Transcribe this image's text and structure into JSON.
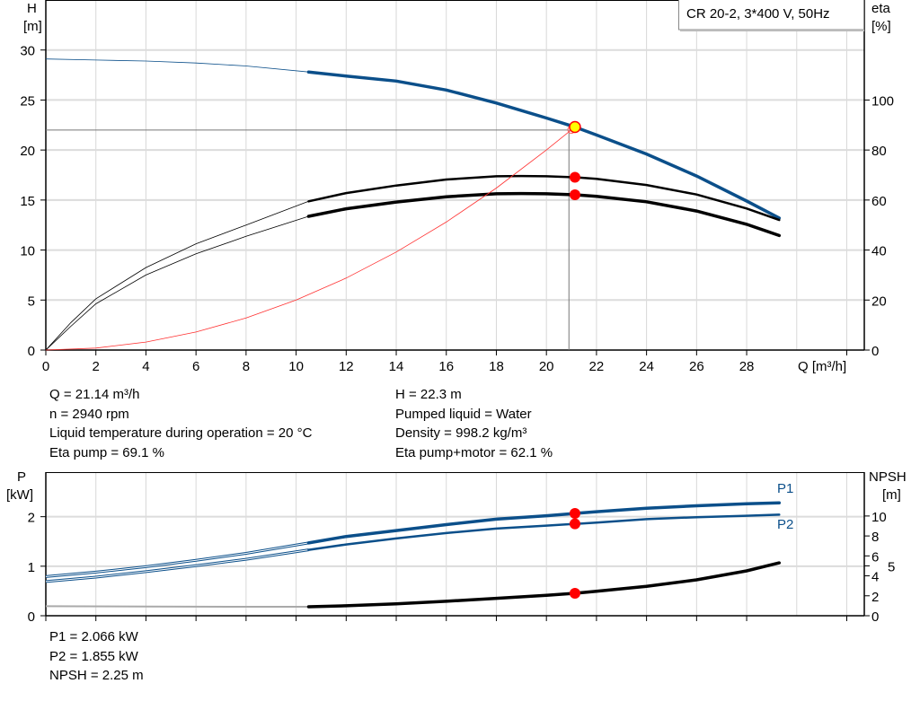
{
  "chart_data": [
    {
      "type": "line",
      "title": "CR 20-2, 3*400 V, 50Hz",
      "xlabel": "Q [m³/h]",
      "ylabel": [
        "H",
        "[m]"
      ],
      "y2label": [
        "eta",
        "[%]"
      ],
      "xlim": [
        0,
        32.7
      ],
      "ylim": [
        0,
        35
      ],
      "y2lim": [
        0,
        140
      ],
      "xticks": [
        0,
        2,
        4,
        6,
        8,
        10,
        12,
        14,
        16,
        18,
        20,
        22,
        24,
        26,
        28
      ],
      "yticks": [
        0,
        5,
        10,
        15,
        20,
        25,
        30
      ],
      "y2ticks": [
        0,
        20,
        40,
        60,
        80,
        100
      ],
      "grid": true,
      "legend": "top-right",
      "series": [
        {
          "key": "H",
          "axis": "left",
          "color": "#0b4f8a",
          "thick_from": 10.5,
          "x": [
            0,
            2,
            4,
            6,
            8,
            10.5,
            12,
            14,
            16,
            18,
            20,
            21.14,
            22,
            24,
            26,
            28,
            29.3
          ],
          "y": [
            29.1,
            29.0,
            28.9,
            28.7,
            28.4,
            27.8,
            27.4,
            26.9,
            26.0,
            24.7,
            23.2,
            22.3,
            21.5,
            19.6,
            17.4,
            14.9,
            13.2
          ]
        },
        {
          "key": "eta_pump",
          "axis": "right",
          "color": "#000000",
          "thick_from": 10.5,
          "x": [
            0,
            1,
            2,
            4,
            6,
            8,
            10.5,
            12,
            14,
            16,
            18,
            19,
            20,
            21.14,
            22,
            24,
            26,
            28,
            29.3
          ],
          "y": [
            0,
            11,
            20.5,
            33,
            42.5,
            50,
            59.5,
            62.8,
            65.8,
            68.2,
            69.5,
            69.6,
            69.5,
            69.1,
            68.5,
            66,
            62.2,
            56.6,
            52
          ]
        },
        {
          "key": "eta_pump_motor",
          "axis": "right",
          "color": "#000000",
          "thick_from": 10.5,
          "x": [
            0,
            1,
            2,
            4,
            6,
            8,
            10.5,
            12,
            14,
            16,
            18,
            19,
            20,
            21.14,
            22,
            24,
            26,
            28,
            29.3
          ],
          "y": [
            0,
            9.5,
            18.5,
            30,
            38.5,
            45.5,
            53.5,
            56.5,
            59.2,
            61.3,
            62.5,
            62.6,
            62.5,
            62.1,
            61.5,
            59.3,
            55.6,
            50.3,
            45.8
          ]
        },
        {
          "key": "system_curve",
          "axis": "left",
          "color": "#ff3030",
          "x": [
            0,
            2,
            4,
            6,
            8,
            10,
            12,
            14,
            16,
            18,
            20,
            21.14
          ],
          "y": [
            0,
            0.2,
            0.8,
            1.8,
            3.2,
            5.0,
            7.2,
            9.8,
            12.8,
            16.2,
            20.0,
            22.3
          ]
        }
      ],
      "duty_point": {
        "Q": 21.14,
        "H": 22.3,
        "eta_pump": 69.1,
        "eta_pump_motor": 62.1
      },
      "crosshair": {
        "Q": 20.9,
        "H": 22.0
      }
    },
    {
      "type": "line",
      "ylabel": [
        "P",
        "[kW]"
      ],
      "y2label": [
        "NPSH",
        "[m]"
      ],
      "xlim": [
        0,
        32.7
      ],
      "ylim": [
        0,
        2.9
      ],
      "y2lim": [
        0,
        14.4
      ],
      "xticks": [
        0,
        2,
        4,
        6,
        8,
        10,
        12,
        14,
        16,
        18,
        20,
        22,
        24,
        26,
        28
      ],
      "yticks": [
        0,
        1,
        2
      ],
      "y2ticks": [
        0,
        2,
        4,
        5,
        6,
        8,
        10
      ],
      "grid": true,
      "series": [
        {
          "key": "P1",
          "name": "P1",
          "axis": "left",
          "color": "#0b4f8a",
          "thick_from": 10.5,
          "x": [
            0,
            2,
            4,
            6,
            8,
            10.5,
            12,
            14,
            16,
            18,
            20,
            21.14,
            22,
            24,
            26,
            28,
            29.3
          ],
          "y": [
            0.79,
            0.88,
            0.99,
            1.12,
            1.26,
            1.47,
            1.6,
            1.72,
            1.84,
            1.95,
            2.02,
            2.066,
            2.1,
            2.17,
            2.22,
            2.26,
            2.28
          ]
        },
        {
          "key": "P2",
          "name": "P2",
          "axis": "left",
          "color": "#0b4f8a",
          "thick_from": 10.5,
          "x": [
            0,
            2,
            4,
            6,
            8,
            10.5,
            12,
            14,
            16,
            18,
            20,
            21.14,
            22,
            24,
            26,
            28,
            29.3
          ],
          "y": [
            0.69,
            0.78,
            0.89,
            1.01,
            1.14,
            1.33,
            1.44,
            1.56,
            1.67,
            1.76,
            1.82,
            1.855,
            1.88,
            1.95,
            1.99,
            2.02,
            2.04
          ]
        },
        {
          "key": "NPSH",
          "axis": "right",
          "color": "#000000",
          "thin_color": "#aaaaaa",
          "thick_from": 10.5,
          "x": [
            0,
            4,
            8,
            10.5,
            12,
            14,
            16,
            18,
            20,
            21.14,
            22,
            24,
            26,
            28,
            29.3
          ],
          "y": [
            0.95,
            0.92,
            0.9,
            0.9,
            1.0,
            1.2,
            1.45,
            1.75,
            2.05,
            2.25,
            2.45,
            2.95,
            3.6,
            4.5,
            5.3
          ]
        }
      ],
      "duty_point": {
        "Q": 21.14,
        "P1": 2.066,
        "P2": 1.855,
        "NPSH": 2.25
      }
    }
  ],
  "readouts_top": {
    "left": [
      "Q = 21.14 m³/h",
      "n = 2940 rpm",
      "Liquid temperature during operation = 20 °C",
      "Eta pump = 69.1 %"
    ],
    "right": [
      "H = 22.3 m",
      "Pumped liquid = Water",
      "Density = 998.2 kg/m³",
      "Eta pump+motor = 62.1 %"
    ]
  },
  "readouts_bottom": [
    "P1 = 2.066 kW",
    "P2 = 1.855 kW",
    "NPSH = 2.25 m"
  ]
}
